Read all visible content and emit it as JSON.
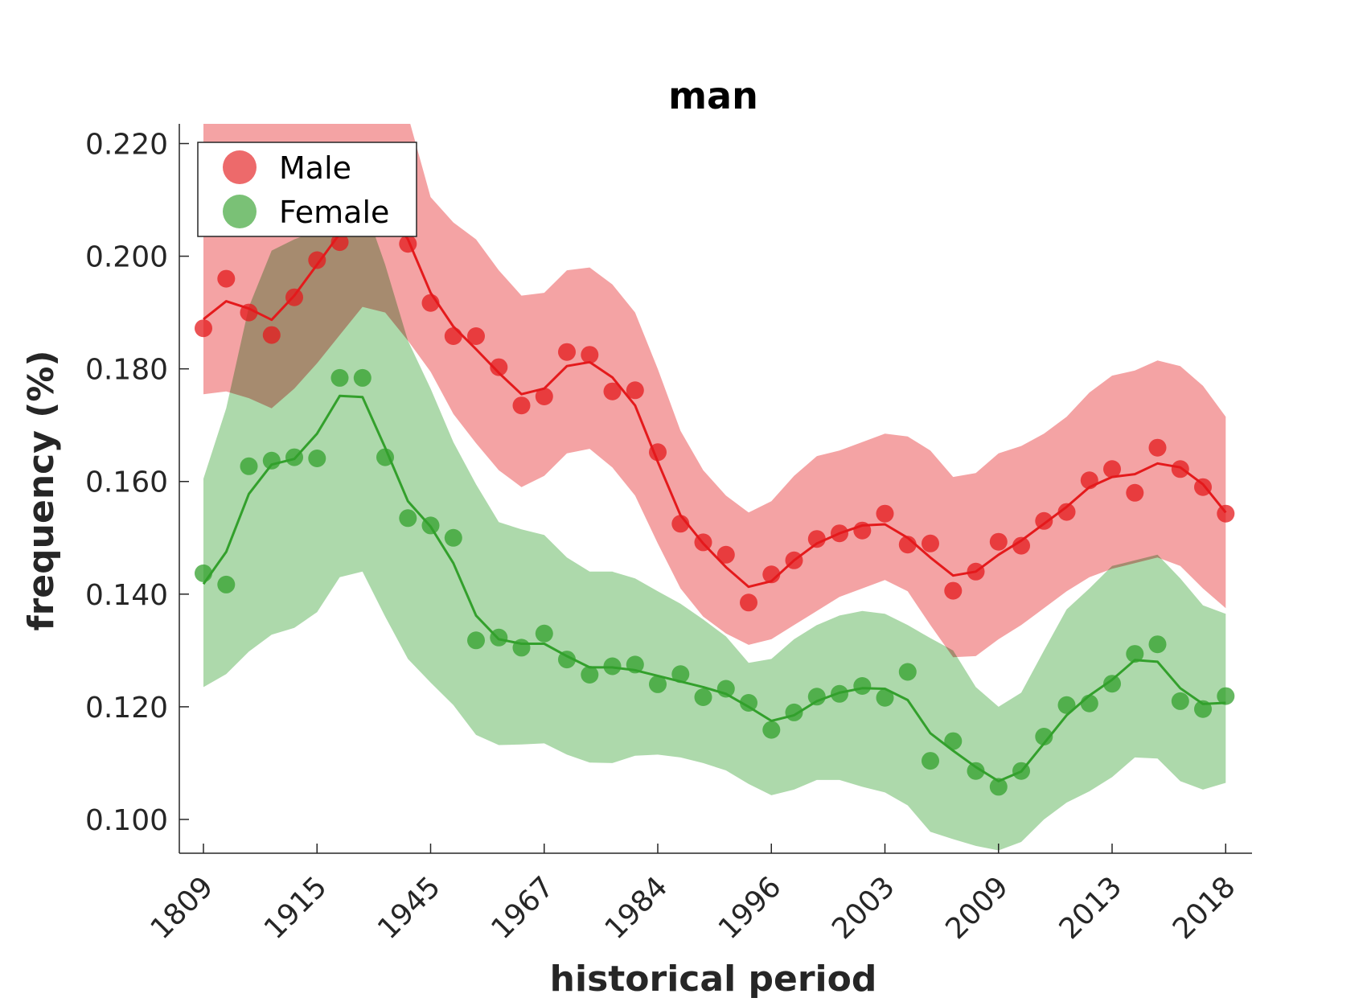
{
  "chart_data": {
    "type": "scatter",
    "title": "man",
    "xlabel": "historical period",
    "ylabel": "frequency (%)",
    "x_tick_labels": [
      "1809",
      "1915",
      "1945",
      "1967",
      "1984",
      "1996",
      "2003",
      "2009",
      "2013",
      "2018"
    ],
    "y_tick_labels": [
      "0.100",
      "0.120",
      "0.140",
      "0.160",
      "0.180",
      "0.200",
      "0.220"
    ],
    "ylim": [
      0.094,
      0.2235
    ],
    "grid": false,
    "legend_position": "top-left",
    "series": [
      {
        "name": "Male",
        "color": "#e41a1c",
        "points": [
          0.1872,
          0.196,
          0.19,
          0.186,
          0.1927,
          0.1993,
          0.2025,
          0.2125,
          0.2072,
          0.2022,
          0.1917,
          0.1858,
          0.1858,
          0.1803,
          0.1735,
          0.1751,
          0.183,
          0.1825,
          0.176,
          0.1762,
          0.1652,
          0.1525,
          0.1492,
          0.147,
          0.1385,
          0.1435,
          0.146,
          0.1498,
          0.1508,
          0.1513,
          0.1543,
          0.1488,
          0.149,
          0.1406,
          0.144,
          0.1493,
          0.1486,
          0.153,
          0.1546,
          0.1602,
          0.1622,
          0.158,
          0.166,
          0.1622,
          0.159,
          0.1543
        ],
        "fit": [
          0.1888,
          0.192,
          0.1907,
          0.1887,
          0.193,
          0.1985,
          0.204,
          0.211,
          0.209,
          0.203,
          0.1935,
          0.1875,
          0.1835,
          0.1793,
          0.1755,
          0.1765,
          0.1805,
          0.1812,
          0.1785,
          0.1735,
          0.1635,
          0.154,
          0.149,
          0.1448,
          0.1413,
          0.1423,
          0.146,
          0.149,
          0.1508,
          0.1522,
          0.1524,
          0.15,
          0.1465,
          0.1433,
          0.144,
          0.147,
          0.1495,
          0.1525,
          0.1555,
          0.159,
          0.1608,
          0.1613,
          0.1632,
          0.1625,
          0.1595,
          0.1545
        ],
        "band_upper": [
          0.2265,
          0.2265,
          0.226,
          0.2255,
          0.2255,
          0.2255,
          0.2258,
          0.2275,
          0.227,
          0.225,
          0.2105,
          0.206,
          0.203,
          0.1975,
          0.193,
          0.1935,
          0.1975,
          0.198,
          0.195,
          0.19,
          0.18,
          0.169,
          0.162,
          0.1575,
          0.1545,
          0.1565,
          0.161,
          0.1645,
          0.1655,
          0.167,
          0.1685,
          0.168,
          0.1655,
          0.1608,
          0.1615,
          0.165,
          0.1663,
          0.1685,
          0.1715,
          0.1758,
          0.1788,
          0.1797,
          0.1815,
          0.1805,
          0.177,
          0.1715
        ],
        "band_lower": [
          0.1755,
          0.176,
          0.1748,
          0.173,
          0.1765,
          0.181,
          0.186,
          0.191,
          0.19,
          0.185,
          0.1795,
          0.172,
          0.1668,
          0.162,
          0.159,
          0.161,
          0.165,
          0.1658,
          0.1625,
          0.1575,
          0.149,
          0.141,
          0.136,
          0.133,
          0.131,
          0.132,
          0.1345,
          0.137,
          0.1395,
          0.141,
          0.1425,
          0.1405,
          0.1345,
          0.1288,
          0.129,
          0.132,
          0.1345,
          0.1375,
          0.1405,
          0.143,
          0.1445,
          0.1455,
          0.1465,
          0.145,
          0.141,
          0.1375
        ]
      },
      {
        "name": "Female",
        "color": "#33a02c",
        "points": [
          0.1437,
          0.1417,
          0.1627,
          0.1637,
          0.1643,
          0.1641,
          0.1784,
          0.1784,
          0.1643,
          0.1535,
          0.1522,
          0.15,
          0.1318,
          0.1323,
          0.1305,
          0.133,
          0.1284,
          0.1257,
          0.1272,
          0.1275,
          0.124,
          0.1258,
          0.1217,
          0.1232,
          0.1207,
          0.1159,
          0.119,
          0.1218,
          0.1223,
          0.1237,
          0.1216,
          0.1262,
          0.1104,
          0.1139,
          0.1086,
          0.1058,
          0.1086,
          0.1147,
          0.1203,
          0.1206,
          0.1241,
          0.1294,
          0.1311,
          0.121,
          0.1196,
          0.1219
        ],
        "fit": [
          0.1418,
          0.1475,
          0.1578,
          0.163,
          0.164,
          0.1685,
          0.1752,
          0.175,
          0.166,
          0.1565,
          0.152,
          0.1455,
          0.1362,
          0.132,
          0.1312,
          0.1312,
          0.129,
          0.127,
          0.127,
          0.1265,
          0.1255,
          0.1245,
          0.1235,
          0.1223,
          0.12,
          0.1175,
          0.1185,
          0.121,
          0.1225,
          0.1233,
          0.1232,
          0.1212,
          0.1153,
          0.1122,
          0.1093,
          0.1068,
          0.1085,
          0.1135,
          0.1185,
          0.122,
          0.1248,
          0.1283,
          0.128,
          0.1233,
          0.1205,
          0.1207
        ],
        "band_upper": [
          0.1605,
          0.173,
          0.191,
          0.201,
          0.203,
          0.2045,
          0.206,
          0.21,
          0.1985,
          0.185,
          0.1765,
          0.167,
          0.1595,
          0.1528,
          0.1515,
          0.1505,
          0.1465,
          0.144,
          0.144,
          0.1428,
          0.1405,
          0.1383,
          0.1355,
          0.1325,
          0.1278,
          0.1285,
          0.132,
          0.1345,
          0.1362,
          0.137,
          0.1365,
          0.1345,
          0.1322,
          0.13,
          0.1235,
          0.12,
          0.1225,
          0.13,
          0.1373,
          0.141,
          0.145,
          0.146,
          0.147,
          0.1428,
          0.138,
          0.1365
        ],
        "band_lower": [
          0.1235,
          0.1258,
          0.1298,
          0.1328,
          0.134,
          0.1368,
          0.143,
          0.144,
          0.136,
          0.1285,
          0.1243,
          0.1203,
          0.115,
          0.1132,
          0.1133,
          0.1135,
          0.1115,
          0.1101,
          0.11,
          0.1113,
          0.1115,
          0.111,
          0.11,
          0.1087,
          0.1063,
          0.1043,
          0.1053,
          0.107,
          0.107,
          0.1058,
          0.1048,
          0.1025,
          0.0978,
          0.0965,
          0.0953,
          0.0945,
          0.096,
          0.1,
          0.103,
          0.105,
          0.1075,
          0.111,
          0.1108,
          0.1068,
          0.1053,
          0.1065
        ]
      }
    ]
  }
}
